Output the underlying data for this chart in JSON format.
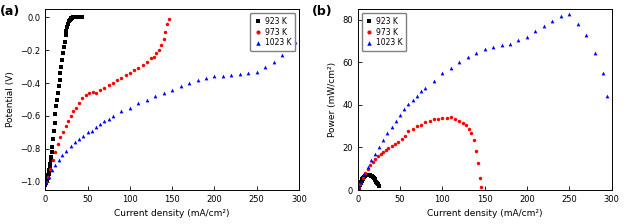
{
  "title_a": "(a)",
  "title_b": "(b)",
  "xlabel": "Current density (mA/cm²)",
  "ylabel_a": "Potential (V)",
  "ylabel_b": "Power (mW/cm²)",
  "legend_labels": [
    "923 K",
    "973 K",
    "1023 K"
  ],
  "colors": [
    "black",
    "red",
    "blue"
  ],
  "markers": [
    "s",
    "o",
    "^"
  ],
  "background": "#ffffff",
  "iv_923_x": [
    0.3,
    0.6,
    0.9,
    1.2,
    1.5,
    1.8,
    2.1,
    2.4,
    2.7,
    3.0,
    3.5,
    4.0,
    4.5,
    5.0,
    5.5,
    6.0,
    6.5,
    7.0,
    7.5,
    8.0,
    9.0,
    10.0,
    11.0,
    12.0,
    13.0,
    14.0,
    15.0,
    16.0,
    17.0,
    18.0,
    19.0,
    20.0,
    21.0,
    22.0,
    23.0,
    24.0,
    25.0,
    26.0,
    27.0,
    28.0,
    29.0,
    30.0,
    31.0,
    32.0,
    33.0,
    34.0,
    36.0,
    38.0,
    40.0,
    42.0,
    44.0
  ],
  "iv_923_y": [
    -1.02,
    -1.01,
    -1.005,
    -1.0,
    -0.995,
    -0.99,
    -0.985,
    -0.98,
    -0.975,
    -0.97,
    -0.96,
    -0.95,
    -0.94,
    -0.93,
    -0.91,
    -0.89,
    -0.87,
    -0.85,
    -0.82,
    -0.79,
    -0.74,
    -0.69,
    -0.64,
    -0.59,
    -0.54,
    -0.5,
    -0.46,
    -0.42,
    -0.38,
    -0.34,
    -0.3,
    -0.26,
    -0.22,
    -0.18,
    -0.15,
    -0.11,
    -0.085,
    -0.06,
    -0.04,
    -0.025,
    -0.015,
    -0.008,
    -0.004,
    -0.002,
    -0.001,
    -0.0005,
    -0.0002,
    -0.0001,
    -5e-05,
    -2e-05,
    0.0
  ],
  "iv_973_x": [
    1.0,
    3.0,
    6.0,
    9.0,
    12.0,
    15.0,
    18.0,
    21.0,
    24.0,
    27.0,
    30.0,
    33.0,
    36.0,
    40.0,
    44.0,
    48.0,
    52.0,
    56.0,
    60.0,
    65.0,
    70.0,
    75.0,
    80.0,
    85.0,
    90.0,
    95.0,
    100.0,
    105.0,
    110.0,
    115.0,
    120.0,
    125.0,
    128.0,
    131.0,
    134.0,
    137.0,
    140.0,
    142.0,
    144.0,
    146.0
  ],
  "iv_973_y": [
    -1.0,
    -0.97,
    -0.92,
    -0.87,
    -0.82,
    -0.77,
    -0.73,
    -0.7,
    -0.66,
    -0.63,
    -0.6,
    -0.57,
    -0.55,
    -0.52,
    -0.49,
    -0.47,
    -0.46,
    -0.455,
    -0.46,
    -0.44,
    -0.43,
    -0.41,
    -0.4,
    -0.38,
    -0.37,
    -0.35,
    -0.34,
    -0.32,
    -0.31,
    -0.29,
    -0.27,
    -0.25,
    -0.24,
    -0.22,
    -0.2,
    -0.17,
    -0.13,
    -0.09,
    -0.04,
    -0.01
  ],
  "iv_1023_x": [
    1.0,
    4.0,
    8.0,
    12.0,
    16.0,
    20.0,
    25.0,
    30.0,
    35.0,
    40.0,
    45.0,
    50.0,
    55.0,
    60.0,
    65.0,
    70.0,
    75.0,
    80.0,
    90.0,
    100.0,
    110.0,
    120.0,
    130.0,
    140.0,
    150.0,
    160.0,
    170.0,
    180.0,
    190.0,
    200.0,
    210.0,
    220.0,
    230.0,
    240.0,
    250.0,
    260.0,
    270.0,
    280.0,
    290.0,
    295.0
  ],
  "iv_1023_y": [
    -1.0,
    -0.97,
    -0.93,
    -0.9,
    -0.87,
    -0.84,
    -0.81,
    -0.78,
    -0.76,
    -0.74,
    -0.72,
    -0.7,
    -0.69,
    -0.67,
    -0.65,
    -0.63,
    -0.62,
    -0.6,
    -0.57,
    -0.55,
    -0.52,
    -0.5,
    -0.48,
    -0.46,
    -0.44,
    -0.42,
    -0.4,
    -0.38,
    -0.37,
    -0.36,
    -0.355,
    -0.35,
    -0.345,
    -0.34,
    -0.33,
    -0.3,
    -0.27,
    -0.23,
    -0.19,
    -0.15
  ],
  "pw_923_x": [
    0.3,
    0.6,
    0.9,
    1.2,
    1.5,
    1.8,
    2.1,
    2.4,
    2.7,
    3.0,
    3.5,
    4.0,
    4.5,
    5.0,
    5.5,
    6.0,
    6.5,
    7.0,
    7.5,
    8.0,
    9.0,
    10.0,
    11.0,
    12.0,
    13.0,
    14.0,
    15.0,
    16.0,
    17.0,
    18.0,
    19.0,
    20.0,
    21.0,
    22.0,
    23.0,
    24.0,
    25.0
  ],
  "pw_923_y": [
    0.3,
    0.6,
    0.9,
    1.2,
    1.5,
    1.78,
    2.07,
    2.35,
    2.63,
    2.91,
    3.36,
    3.8,
    4.23,
    4.65,
    5.0,
    5.34,
    5.66,
    5.95,
    6.15,
    6.32,
    6.66,
    6.9,
    7.04,
    7.08,
    7.02,
    7.0,
    6.9,
    6.72,
    6.46,
    6.12,
    5.7,
    5.2,
    4.62,
    3.96,
    3.45,
    2.64,
    2.125
  ],
  "pw_973_x": [
    1.0,
    3.0,
    6.0,
    9.0,
    12.0,
    15.0,
    18.0,
    21.0,
    24.0,
    27.0,
    30.0,
    33.0,
    36.0,
    40.0,
    44.0,
    48.0,
    52.0,
    56.0,
    60.0,
    65.0,
    70.0,
    75.0,
    80.0,
    85.0,
    90.0,
    95.0,
    100.0,
    105.0,
    110.0,
    115.0,
    120.0,
    125.0,
    128.0,
    131.0,
    134.0,
    137.0,
    140.0,
    142.0,
    144.0,
    146.0
  ],
  "pw_973_y": [
    1.0,
    2.91,
    5.52,
    7.83,
    9.84,
    11.55,
    13.14,
    14.7,
    15.84,
    17.01,
    18.0,
    18.81,
    19.8,
    20.8,
    21.56,
    22.56,
    23.92,
    25.48,
    27.6,
    28.6,
    30.1,
    30.75,
    32.0,
    32.3,
    33.3,
    33.25,
    34.0,
    33.6,
    34.1,
    33.35,
    32.4,
    31.25,
    30.72,
    28.82,
    26.8,
    23.29,
    18.2,
    12.78,
    5.76,
    1.46
  ],
  "pw_1023_x": [
    1.0,
    4.0,
    8.0,
    12.0,
    16.0,
    20.0,
    25.0,
    30.0,
    35.0,
    40.0,
    45.0,
    50.0,
    55.0,
    60.0,
    65.0,
    70.0,
    75.0,
    80.0,
    90.0,
    100.0,
    110.0,
    120.0,
    130.0,
    140.0,
    150.0,
    160.0,
    170.0,
    180.0,
    190.0,
    200.0,
    210.0,
    220.0,
    230.0,
    240.0,
    250.0,
    260.0,
    270.0,
    280.0,
    290.0,
    295.0
  ],
  "pw_1023_y": [
    1.0,
    3.88,
    7.44,
    10.8,
    13.92,
    16.8,
    20.25,
    23.4,
    26.6,
    29.6,
    32.4,
    35.0,
    37.95,
    40.2,
    42.25,
    44.1,
    46.5,
    48.0,
    51.3,
    55.0,
    57.2,
    60.0,
    62.4,
    64.4,
    66.0,
    67.2,
    68.0,
    68.4,
    70.3,
    72.0,
    74.55,
    77.0,
    79.35,
    81.6,
    82.5,
    78.0,
    72.9,
    64.4,
    55.1,
    44.25
  ],
  "xlim_a": [
    0,
    300
  ],
  "ylim_a": [
    -1.05,
    0.05
  ],
  "yticks_a": [
    -1.0,
    -0.8,
    -0.6,
    -0.4,
    -0.2,
    0.0
  ],
  "xticks_a": [
    0,
    50,
    100,
    150,
    200,
    250,
    300
  ],
  "xlim_b": [
    0,
    300
  ],
  "ylim_b": [
    0,
    85
  ],
  "yticks_b": [
    0,
    20,
    40,
    60,
    80
  ],
  "xticks_b": [
    0,
    50,
    100,
    150,
    200,
    250,
    300
  ]
}
